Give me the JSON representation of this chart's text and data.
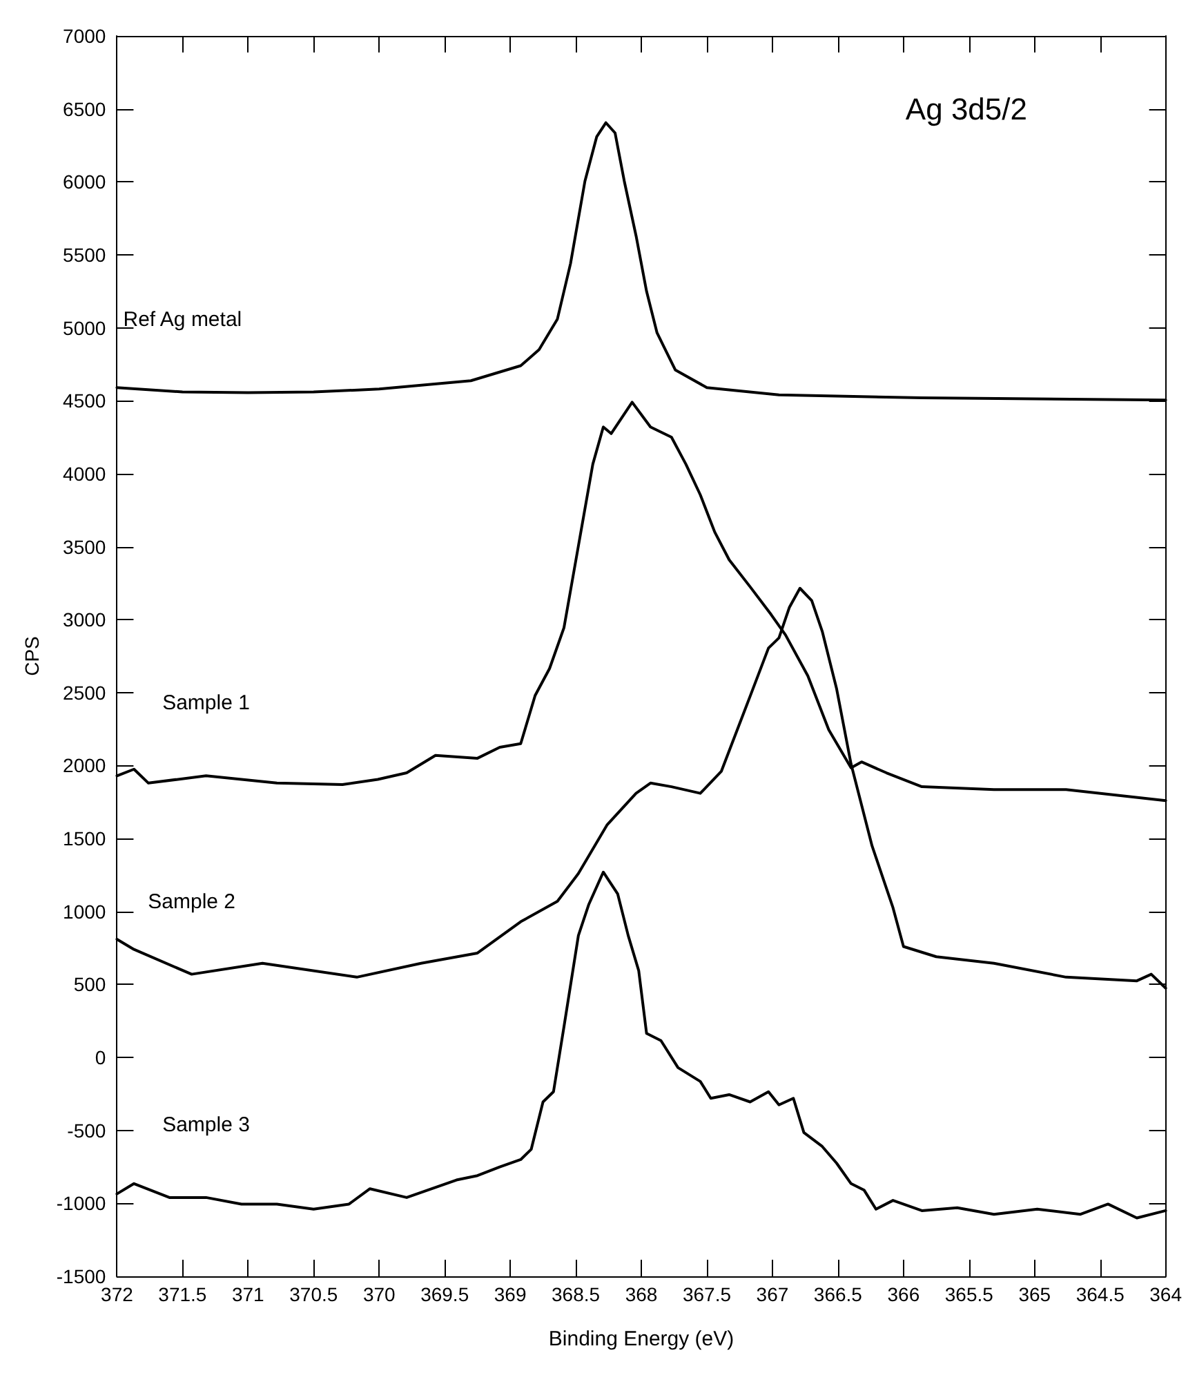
{
  "chart_data": {
    "type": "line",
    "title": "Ag 3d5/2",
    "xlabel": "Binding Energy (eV)",
    "ylabel": "CPS",
    "xlim": [
      372,
      364
    ],
    "xticks": [
      372,
      371.5,
      371,
      370.5,
      370,
      369.5,
      369,
      368.5,
      368,
      367.5,
      367,
      366.5,
      366,
      365.5,
      365,
      364.5,
      364
    ],
    "ylim": [
      -1500,
      7000
    ],
    "yticks": [
      -1500,
      -1000,
      -500,
      0,
      500,
      1000,
      1500,
      2000,
      2500,
      3000,
      3500,
      4000,
      4500,
      5000,
      5500,
      6000,
      6500,
      7000
    ],
    "grid": false,
    "legend": false,
    "marker": "none",
    "line_style": "solid",
    "series": [
      {
        "name": "Ref Ag metal",
        "color": "#000000",
        "x": [
          372,
          371.5,
          371,
          370.5,
          370,
          369.3,
          368.92,
          368.78,
          368.64,
          368.54,
          368.43,
          368.34,
          368.27,
          368.2,
          368.13,
          368.04,
          367.96,
          367.88,
          367.74,
          367.5,
          366.95,
          365.86,
          364
        ],
        "values": [
          4590,
          4560,
          4555,
          4560,
          4580,
          4637,
          4740,
          4850,
          5060,
          5440,
          6005,
          6310,
          6405,
          6335,
          6005,
          5630,
          5250,
          4965,
          4710,
          4590,
          4540,
          4520,
          4505
        ]
      },
      {
        "name": "Sample 1",
        "color": "#000000",
        "x": [
          372,
          371.87,
          371.76,
          371.32,
          370.78,
          370.28,
          370.01,
          369.79,
          369.57,
          369.25,
          369.08,
          368.92,
          368.81,
          368.7,
          368.59,
          368.48,
          368.37,
          368.29,
          368.23,
          368.07,
          367.93,
          367.77,
          367.66,
          367.55,
          367.44,
          367.33,
          367.17,
          367.01,
          366.9,
          366.73,
          366.57,
          366.4,
          366.32,
          366.13,
          365.86,
          365.31,
          364.76,
          364
        ],
        "values": [
          1930,
          1975,
          1880,
          1930,
          1880,
          1870,
          1905,
          1950,
          2070,
          2050,
          2125,
          2150,
          2480,
          2665,
          2945,
          3505,
          4065,
          4320,
          4275,
          4490,
          4320,
          4250,
          4065,
          3855,
          3600,
          3410,
          3225,
          3035,
          2895,
          2615,
          2245,
          1985,
          2025,
          1950,
          1855,
          1835,
          1835,
          1760
        ]
      },
      {
        "name": "Sample 2",
        "color": "#000000",
        "x": [
          372,
          371.87,
          371.43,
          370.89,
          370.17,
          369.68,
          369.25,
          368.92,
          368.64,
          368.48,
          368.26,
          368.04,
          367.93,
          367.77,
          367.55,
          367.39,
          367.17,
          367.03,
          366.95,
          366.87,
          366.79,
          366.7,
          366.62,
          366.51,
          366.4,
          366.24,
          366.08,
          366,
          365.75,
          365.31,
          364.76,
          364.22,
          364.11,
          364
        ],
        "values": [
          810,
          740,
          570,
          645,
          550,
          645,
          715,
          930,
          1070,
          1260,
          1595,
          1810,
          1880,
          1855,
          1810,
          1960,
          2475,
          2805,
          2875,
          3085,
          3215,
          3130,
          2920,
          2525,
          2010,
          1450,
          1025,
          760,
          690,
          645,
          550,
          525,
          570,
          475
        ]
      },
      {
        "name": "Sample 3",
        "color": "#000000",
        "x": [
          372,
          371.87,
          371.6,
          371.32,
          371.05,
          370.78,
          370.5,
          370.23,
          370.07,
          369.79,
          369.41,
          369.25,
          369.08,
          368.92,
          368.84,
          368.75,
          368.67,
          368.59,
          368.48,
          368.4,
          368.29,
          368.18,
          368.1,
          368.02,
          367.96,
          367.85,
          367.72,
          367.55,
          367.47,
          367.33,
          367.17,
          367.03,
          366.95,
          366.84,
          366.76,
          366.62,
          366.51,
          366.4,
          366.3,
          366.21,
          366.08,
          365.86,
          365.59,
          365.31,
          364.98,
          364.65,
          364.44,
          364.22,
          364
        ],
        "values": [
          -935,
          -865,
          -960,
          -960,
          -1005,
          -1005,
          -1040,
          -1005,
          -900,
          -960,
          -840,
          -810,
          -750,
          -700,
          -630,
          -305,
          -235,
          210,
          835,
          1050,
          1270,
          1120,
          835,
          595,
          165,
          115,
          -70,
          -165,
          -280,
          -255,
          -305,
          -235,
          -325,
          -280,
          -515,
          -610,
          -725,
          -865,
          -910,
          -1040,
          -980,
          -1050,
          -1030,
          -1075,
          -1040,
          -1075,
          -1005,
          -1100,
          -1050
        ]
      }
    ]
  }
}
